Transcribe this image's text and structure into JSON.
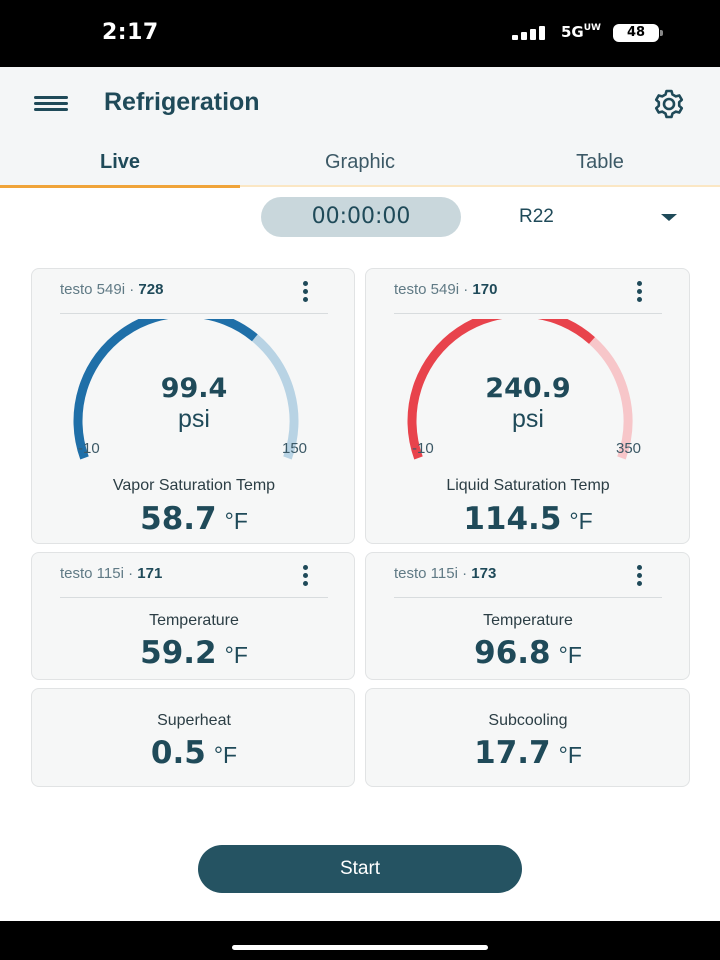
{
  "status_bar": {
    "time": "2:17",
    "network": "5G",
    "network_sup": "UW",
    "battery": "48"
  },
  "header": {
    "title": "Refrigeration"
  },
  "tabs": [
    {
      "label": "Live",
      "active": true
    },
    {
      "label": "Graphic",
      "active": false
    },
    {
      "label": "Table",
      "active": false
    }
  ],
  "controls": {
    "timer": "00:00:00",
    "refrigerant": "R22"
  },
  "cards": [
    {
      "device": "testo 549i",
      "serial": "728",
      "gauge": {
        "value": "99.4",
        "unit": "psi",
        "min": "-10",
        "max": "150",
        "fill_fraction": 0.68,
        "color": "#1f6fa8",
        "track_color": "#b8d3e4"
      },
      "label": "Vapor Saturation Temp",
      "reading": "58.7",
      "unit": "°F"
    },
    {
      "device": "testo 549i",
      "serial": "170",
      "gauge": {
        "value": "240.9",
        "unit": "psi",
        "min": "-10",
        "max": "350",
        "fill_fraction": 0.69,
        "color": "#e8434c",
        "track_color": "#f7c6c9"
      },
      "label": "Liquid Saturation Temp",
      "reading": "114.5",
      "unit": "°F"
    },
    {
      "device": "testo 115i",
      "serial": "171",
      "label": "Temperature",
      "reading": "59.2",
      "unit": "°F"
    },
    {
      "device": "testo 115i",
      "serial": "173",
      "label": "Temperature",
      "reading": "96.8",
      "unit": "°F"
    },
    {
      "label": "Superheat",
      "reading": "0.5",
      "unit": "°F"
    },
    {
      "label": "Subcooling",
      "reading": "17.7",
      "unit": "°F"
    }
  ],
  "actions": {
    "start_label": "Start"
  },
  "colors": {
    "primary": "#1f4a59",
    "accent_tab": "#f0a43a",
    "button": "#255362"
  }
}
